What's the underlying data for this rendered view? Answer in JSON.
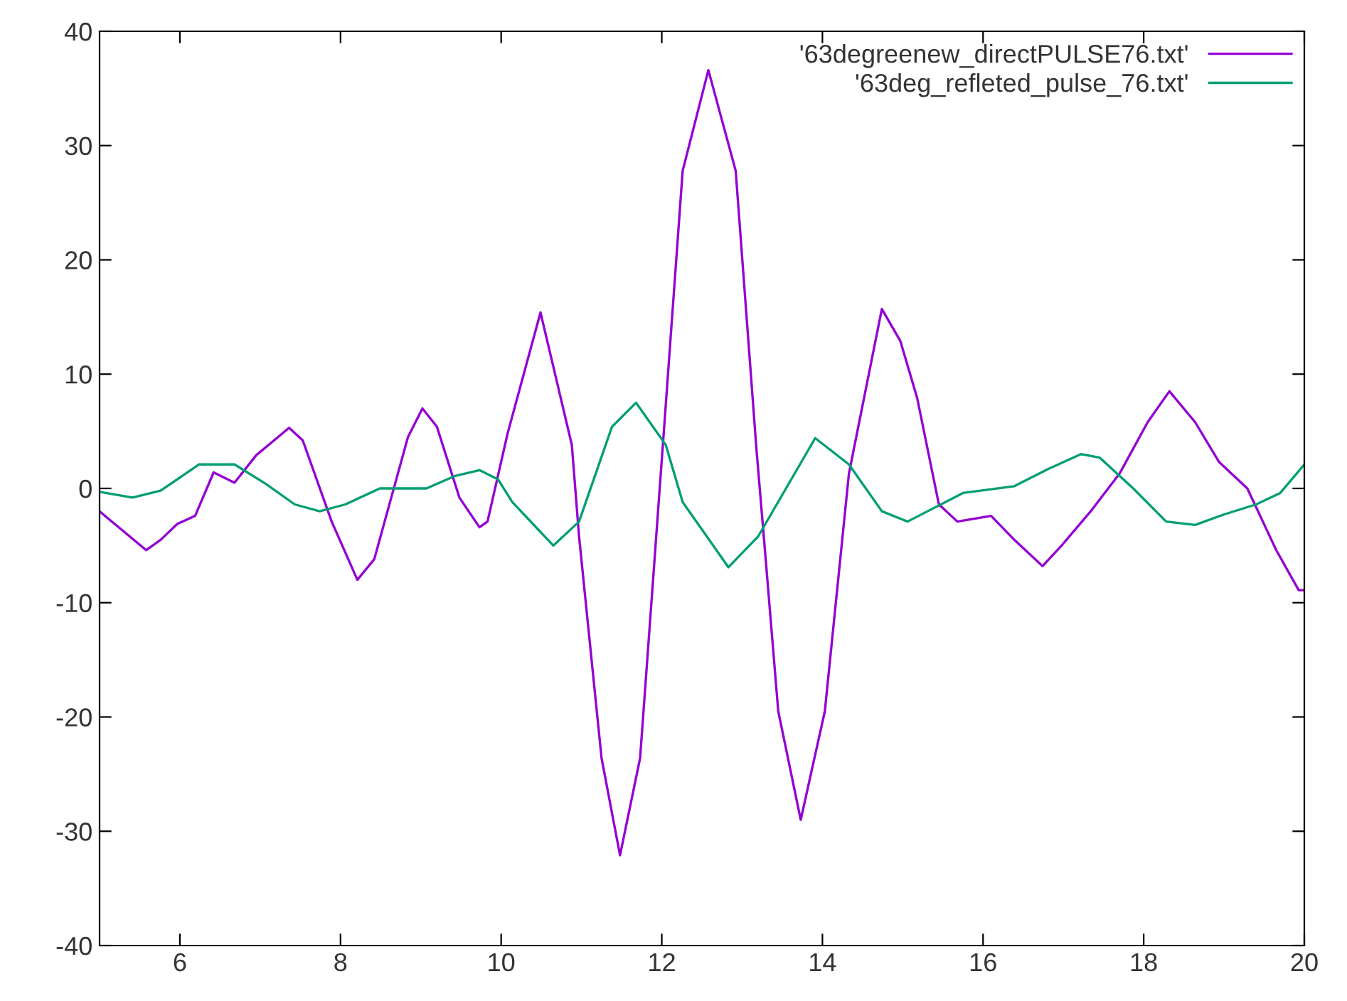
{
  "chart_data": {
    "type": "line",
    "xlim": [
      5,
      20
    ],
    "ylim": [
      -40,
      40
    ],
    "xticks": [
      6,
      8,
      10,
      12,
      14,
      16,
      18,
      20
    ],
    "yticks": [
      -40,
      -30,
      -20,
      -10,
      0,
      10,
      20,
      30,
      40
    ],
    "grid": false,
    "legend": "top right",
    "marker": "none",
    "line_style": "solid",
    "series": [
      {
        "name": "'63degreenew_directPULSE76.txt'",
        "color": "#9400d3",
        "x": [
          5,
          5.05,
          5.58,
          5.76,
          5.97,
          6.19,
          6.42,
          6.68,
          6.95,
          7.36,
          7.53,
          7.89,
          8.21,
          8.42,
          8.84,
          9.02,
          9.2,
          9.48,
          9.73,
          9.83,
          10.08,
          10.49,
          10.88,
          10.97,
          11.25,
          11.48,
          11.73,
          12.03,
          12.26,
          12.58,
          12.92,
          13.18,
          13.27,
          13.45,
          13.73,
          14.03,
          14.33,
          14.74,
          14.97,
          15.18,
          15.45,
          15.68,
          16.1,
          16.39,
          16.74,
          16.99,
          17.34,
          17.7,
          18.05,
          18.32,
          18.64,
          18.94,
          19.29,
          19.65,
          19.93,
          20
        ],
        "values": [
          -2,
          -2.3,
          -5.4,
          -4.5,
          -3.1,
          -2.4,
          1.4,
          0.5,
          2.9,
          5.3,
          4.2,
          -2.9,
          -8,
          -6.2,
          4.5,
          7,
          5.4,
          -0.8,
          -3.4,
          -2.9,
          4.8,
          15.4,
          3.8,
          -4.2,
          -23.6,
          -32.1,
          -23.6,
          5.4,
          27.8,
          36.6,
          27.8,
          3.3,
          -4.2,
          -19.5,
          -29,
          -19.5,
          1.3,
          15.7,
          12.9,
          7.9,
          -1.4,
          -2.9,
          -2.4,
          -4.5,
          -6.8,
          -4.9,
          -2,
          1.3,
          5.8,
          8.5,
          5.8,
          2.3,
          0,
          -5.4,
          -8.9,
          -8.9
        ]
      },
      {
        "name": "'63deg_refleted_pulse_76.txt'",
        "color": "#009e73",
        "x": [
          5,
          5.41,
          5.76,
          6.24,
          6.68,
          7.07,
          7.43,
          7.74,
          8.06,
          8.49,
          9.07,
          9.43,
          9.73,
          9.96,
          10.14,
          10.65,
          10.97,
          11.38,
          11.68,
          12.05,
          12.26,
          12.83,
          13.2,
          13.91,
          14.33,
          14.74,
          15.06,
          15.75,
          16.39,
          16.81,
          17.22,
          17.45,
          17.87,
          18.28,
          18.64,
          18.99,
          19.4,
          19.7,
          20
        ],
        "values": [
          -0.3,
          -0.8,
          -0.2,
          2.1,
          2.1,
          0.4,
          -1.4,
          -2,
          -1.4,
          0,
          0,
          1.1,
          1.6,
          0.8,
          -1.2,
          -5,
          -2.9,
          5.4,
          7.5,
          3.8,
          -1.2,
          -6.9,
          -4.2,
          4.4,
          2.1,
          -2,
          -2.9,
          -0.4,
          0.2,
          1.7,
          3,
          2.7,
          0,
          -2.9,
          -3.2,
          -2.3,
          -1.4,
          -0.4,
          2.1
        ]
      }
    ]
  }
}
